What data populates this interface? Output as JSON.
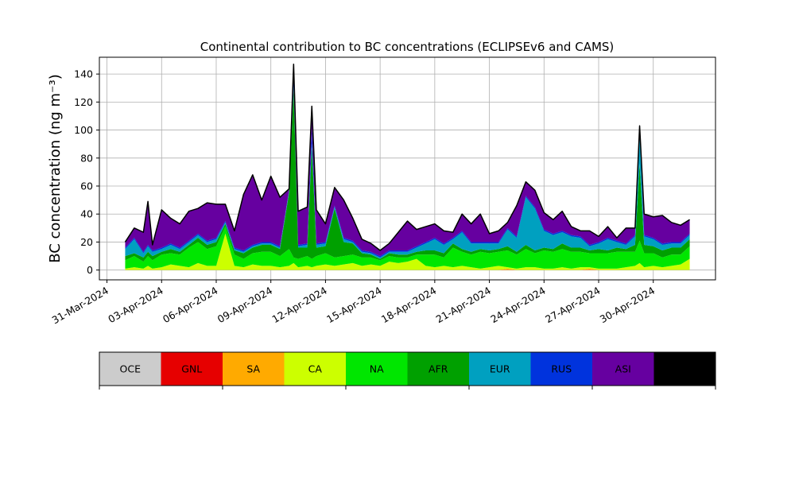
{
  "chart_data": {
    "type": "area",
    "stacked": true,
    "title": "Continental contribution to BC concentrations (ECLIPSEv6 and CAMS)",
    "ylabel": "BC concentration (ng m⁻³)",
    "xlabel": "",
    "xlim": [
      "2024-03-30T14:00",
      "2024-05-03T10:00"
    ],
    "ylim": [
      -7,
      152
    ],
    "yticks": [
      0,
      20,
      40,
      60,
      80,
      100,
      120,
      140
    ],
    "xticks": [
      "31-Mar-2024",
      "03-Apr-2024",
      "06-Apr-2024",
      "09-Apr-2024",
      "12-Apr-2024",
      "15-Apr-2024",
      "18-Apr-2024",
      "21-Apr-2024",
      "24-Apr-2024",
      "27-Apr-2024",
      "30-Apr-2024"
    ],
    "grid": true,
    "colorbar": [
      "OCE",
      "GNL",
      "SA",
      "CA",
      "NA",
      "AFR",
      "EUR",
      "RUS",
      "ASI",
      "AUS"
    ],
    "colors": {
      "OCE": "#cccccc",
      "GNL": "#e60000",
      "SA": "#ffaa00",
      "CA": "#ccff00",
      "NA": "#00e600",
      "AFR": "#00a000",
      "EUR": "#00a0c0",
      "RUS": "#0033dd",
      "ASI": "#6600a0",
      "AUS": "#000000",
      "outline": "#000000"
    },
    "x": [
      "2024-04-01",
      "2024-04-01T12:00",
      "2024-04-02",
      "2024-04-02T06:00",
      "2024-04-02T12:00",
      "2024-04-03",
      "2024-04-03T12:00",
      "2024-04-04",
      "2024-04-04T12:00",
      "2024-04-05",
      "2024-04-05T12:00",
      "2024-04-06",
      "2024-04-06T12:00",
      "2024-04-07",
      "2024-04-07T12:00",
      "2024-04-08",
      "2024-04-08T12:00",
      "2024-04-09",
      "2024-04-09T12:00",
      "2024-04-10",
      "2024-04-10T06:00",
      "2024-04-10T12:00",
      "2024-04-11",
      "2024-04-11T06:00",
      "2024-04-11T12:00",
      "2024-04-12",
      "2024-04-12T12:00",
      "2024-04-13",
      "2024-04-13T12:00",
      "2024-04-14",
      "2024-04-14T12:00",
      "2024-04-15",
      "2024-04-15T12:00",
      "2024-04-16",
      "2024-04-16T12:00",
      "2024-04-17",
      "2024-04-17T12:00",
      "2024-04-18",
      "2024-04-18T12:00",
      "2024-04-19",
      "2024-04-19T12:00",
      "2024-04-20",
      "2024-04-20T12:00",
      "2024-04-21",
      "2024-04-21T12:00",
      "2024-04-22",
      "2024-04-22T12:00",
      "2024-04-23",
      "2024-04-23T12:00",
      "2024-04-24",
      "2024-04-24T12:00",
      "2024-04-25",
      "2024-04-25T12:00",
      "2024-04-26",
      "2024-04-26T12:00",
      "2024-04-27",
      "2024-04-27T12:00",
      "2024-04-28",
      "2024-04-28T12:00",
      "2024-04-29",
      "2024-04-29T06:00",
      "2024-04-29T12:00",
      "2024-04-30",
      "2024-04-30T12:00",
      "2024-05-01",
      "2024-05-01T12:00",
      "2024-05-02"
    ],
    "series": [
      {
        "name": "OCE",
        "values": [
          0,
          0,
          0,
          0,
          0,
          0,
          0,
          0,
          0,
          0,
          0,
          0,
          0,
          0,
          0,
          0,
          0,
          0,
          0,
          0,
          0,
          0,
          0,
          0,
          0,
          0,
          0,
          0,
          0,
          0,
          0,
          0,
          0,
          0,
          0,
          0,
          0,
          0,
          0,
          0,
          0,
          0,
          0,
          0,
          0,
          0,
          0,
          0,
          0,
          0,
          0,
          0,
          0,
          0,
          0,
          0,
          0,
          0,
          0,
          0,
          0,
          0,
          0,
          0,
          0,
          0,
          0
        ]
      },
      {
        "name": "GNL",
        "values": [
          0,
          0,
          0,
          0,
          0,
          0,
          0,
          0,
          0,
          0,
          0,
          0,
          0,
          0,
          0,
          0,
          0,
          0,
          0,
          0,
          0,
          0,
          0,
          0,
          0,
          0,
          0,
          0,
          0,
          0,
          0,
          0,
          0,
          0,
          0,
          0,
          0,
          0,
          0,
          0,
          0,
          0,
          0,
          0,
          0,
          0,
          0,
          0,
          0,
          0,
          0,
          0,
          0,
          0,
          0,
          0,
          0,
          0,
          0,
          0,
          0,
          0,
          0,
          0,
          0,
          0,
          0
        ]
      },
      {
        "name": "SA",
        "values": [
          0,
          0,
          0,
          0,
          0,
          0,
          0,
          0,
          0,
          0,
          0,
          0,
          0,
          0,
          0,
          0,
          0,
          0,
          0,
          0,
          0,
          0,
          0,
          0,
          0,
          0,
          0,
          0,
          0,
          0,
          0,
          0,
          0,
          0,
          0,
          0,
          0,
          0,
          0,
          0,
          0,
          0,
          0,
          0,
          0,
          1,
          0,
          0,
          0,
          0,
          0,
          0,
          0,
          0,
          1,
          0,
          0,
          0,
          0,
          0,
          0,
          0,
          0,
          0,
          0,
          0,
          0
        ]
      },
      {
        "name": "CA",
        "values": [
          1,
          2,
          1,
          3,
          1,
          2,
          4,
          3,
          2,
          5,
          3,
          3,
          26,
          3,
          2,
          4,
          3,
          3,
          2,
          3,
          5,
          2,
          3,
          2,
          3,
          4,
          3,
          4,
          5,
          3,
          4,
          3,
          6,
          5,
          6,
          8,
          3,
          2,
          3,
          2,
          3,
          2,
          1,
          2,
          3,
          1,
          1,
          2,
          2,
          1,
          1,
          2,
          1,
          2,
          1,
          1,
          1,
          1,
          2,
          3,
          5,
          2,
          3,
          2,
          3,
          4,
          8
        ]
      },
      {
        "name": "NA",
        "values": [
          6,
          8,
          5,
          7,
          6,
          9,
          8,
          8,
          14,
          15,
          12,
          14,
          5,
          8,
          6,
          8,
          10,
          10,
          8,
          12,
          4,
          6,
          7,
          6,
          7,
          8,
          6,
          6,
          6,
          6,
          5,
          4,
          4,
          4,
          3,
          3,
          8,
          9,
          6,
          14,
          10,
          9,
          12,
          10,
          10,
          12,
          10,
          13,
          10,
          13,
          12,
          13,
          12,
          11,
          10,
          11,
          11,
          12,
          11,
          10,
          16,
          10,
          9,
          7,
          8,
          7,
          9
        ]
      },
      {
        "name": "AFR",
        "values": [
          3,
          2,
          3,
          3,
          3,
          2,
          3,
          2,
          2,
          3,
          3,
          3,
          2,
          3,
          4,
          4,
          5,
          5,
          5,
          40,
          120,
          8,
          6,
          80,
          6,
          5,
          35,
          10,
          8,
          3,
          2,
          1,
          2,
          2,
          2,
          2,
          3,
          3,
          3,
          3,
          2,
          2,
          2,
          2,
          2,
          3,
          2,
          3,
          2,
          2,
          2,
          4,
          3,
          3,
          2,
          3,
          2,
          3,
          2,
          5,
          55,
          6,
          5,
          5,
          5,
          5,
          5
        ]
      },
      {
        "name": "EUR",
        "values": [
          5,
          10,
          3,
          4,
          3,
          2,
          3,
          2,
          2,
          2,
          2,
          2,
          1,
          1,
          1,
          1,
          1,
          1,
          1,
          1,
          3,
          1,
          2,
          3,
          2,
          2,
          1,
          2,
          1,
          1,
          1,
          1,
          1,
          2,
          2,
          3,
          5,
          8,
          6,
          3,
          12,
          6,
          4,
          5,
          4,
          12,
          10,
          34,
          30,
          12,
          10,
          8,
          8,
          7,
          3,
          4,
          8,
          4,
          3,
          6,
          25,
          6,
          5,
          4,
          3,
          3,
          3
        ]
      },
      {
        "name": "RUS",
        "values": [
          1,
          1,
          1,
          1,
          1,
          1,
          1,
          1,
          1,
          1,
          1,
          1,
          1,
          1,
          1,
          1,
          1,
          1,
          1,
          1,
          4,
          1,
          1,
          10,
          1,
          1,
          1,
          1,
          1,
          1,
          1,
          1,
          1,
          1,
          1,
          1,
          1,
          1,
          1,
          1,
          1,
          1,
          1,
          1,
          1,
          1,
          1,
          1,
          1,
          1,
          1,
          1,
          1,
          1,
          1,
          1,
          1,
          1,
          1,
          1,
          1,
          1,
          1,
          1,
          1,
          1,
          1
        ]
      },
      {
        "name": "ASI",
        "values": [
          4,
          7,
          14,
          31,
          4,
          27,
          18,
          17,
          21,
          18,
          27,
          24,
          12,
          12,
          40,
          50,
          30,
          47,
          35,
          1,
          11,
          24,
          26,
          16,
          24,
          13,
          13,
          27,
          16,
          8,
          6,
          4,
          5,
          13,
          21,
          12,
          11,
          10,
          9,
          4,
          12,
          13,
          20,
          6,
          8,
          4,
          22,
          10,
          12,
          12,
          10,
          14,
          6,
          4,
          10,
          4,
          8,
          2,
          11,
          5,
          1,
          15,
          15,
          20,
          14,
          12,
          10
        ]
      },
      {
        "name": "AUS",
        "values": [
          0,
          0,
          0,
          0,
          0,
          0,
          0,
          0,
          0,
          0,
          0,
          0,
          0,
          0,
          0,
          0,
          0,
          0,
          0,
          0,
          0,
          0,
          0,
          0,
          0,
          0,
          0,
          0,
          0,
          0,
          0,
          0,
          0,
          0,
          0,
          0,
          0,
          0,
          0,
          0,
          0,
          0,
          0,
          0,
          0,
          0,
          0,
          0,
          0,
          0,
          0,
          0,
          0,
          0,
          0,
          0,
          0,
          0,
          0,
          0,
          0,
          0,
          0,
          0,
          0,
          0,
          0
        ]
      }
    ]
  }
}
